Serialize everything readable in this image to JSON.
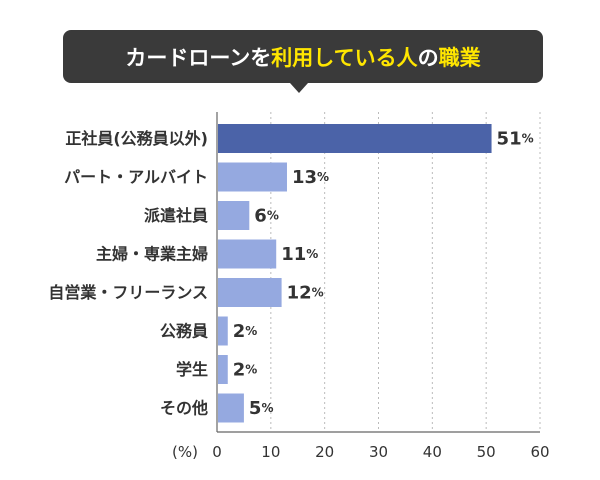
{
  "title": {
    "part1": "カードローンを",
    "highlight1": "利用している人",
    "part2": "の",
    "highlight2": "職業"
  },
  "colors": {
    "title_bg": "#3a3a3a",
    "highlight": "#ffe600",
    "bar_top": "#4b63a8",
    "bar": "#95a9e0",
    "grid": "#bbbbbb",
    "axis": "#666666"
  },
  "chart_data": {
    "type": "bar",
    "orientation": "horizontal",
    "categories": [
      "正社員(公務員以外)",
      "パート・アルバイト",
      "派遣社員",
      "主婦・専業主婦",
      "自営業・フリーランス",
      "公務員",
      "学生",
      "その他"
    ],
    "values": [
      51,
      13,
      6,
      11,
      12,
      2,
      2,
      5
    ],
    "value_suffix": "%",
    "x_unit_label": "(%)",
    "xlim": [
      0,
      60
    ],
    "xticks": [
      0,
      10,
      20,
      30,
      40,
      50,
      60
    ],
    "grid": true
  }
}
